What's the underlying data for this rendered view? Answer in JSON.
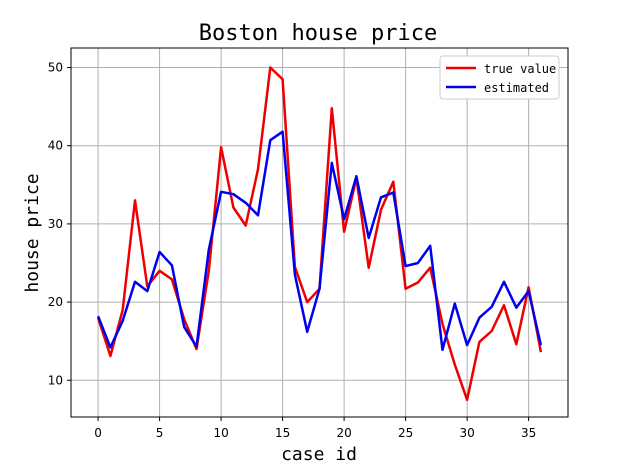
{
  "chart_data": {
    "type": "line",
    "title": "Boston house price",
    "xlabel": "case id",
    "ylabel": "house price",
    "xlim": [
      -2.2,
      38.2
    ],
    "ylim": [
      5.3,
      52.5
    ],
    "x_ticks": [
      0,
      5,
      10,
      15,
      20,
      25,
      30,
      35
    ],
    "y_ticks": [
      10,
      20,
      30,
      40,
      50
    ],
    "grid": true,
    "legend_position": "top-right",
    "x": [
      0,
      1,
      2,
      3,
      4,
      5,
      6,
      7,
      8,
      9,
      10,
      11,
      12,
      13,
      14,
      15,
      16,
      17,
      18,
      19,
      20,
      21,
      22,
      23,
      24,
      25,
      26,
      27,
      28,
      29,
      30,
      31,
      32,
      33,
      34,
      35,
      36
    ],
    "series": [
      {
        "name": "true value",
        "color": "#ee0000",
        "values": [
          18.0,
          13.1,
          19.0,
          33.0,
          22.0,
          24.0,
          22.9,
          17.8,
          14.0,
          24.0,
          39.8,
          32.1,
          29.8,
          37.0,
          50.0,
          48.5,
          24.5,
          20.0,
          21.7,
          44.8,
          29.0,
          35.9,
          24.4,
          31.8,
          35.4,
          21.7,
          22.5,
          24.4,
          17.2,
          12.0,
          7.5,
          14.9,
          16.3,
          19.6,
          14.6,
          21.9,
          13.6
        ]
      },
      {
        "name": "estimated",
        "color": "#0000ee",
        "values": [
          18.2,
          14.2,
          17.6,
          22.6,
          21.4,
          26.4,
          24.7,
          16.8,
          14.3,
          26.7,
          34.1,
          33.8,
          32.7,
          31.1,
          40.7,
          41.8,
          23.5,
          16.2,
          21.7,
          37.8,
          30.6,
          36.1,
          28.2,
          33.4,
          34.0,
          24.6,
          25.0,
          27.2,
          13.9,
          19.8,
          14.5,
          18.0,
          19.4,
          22.6,
          19.3,
          21.4,
          14.5
        ]
      }
    ]
  }
}
